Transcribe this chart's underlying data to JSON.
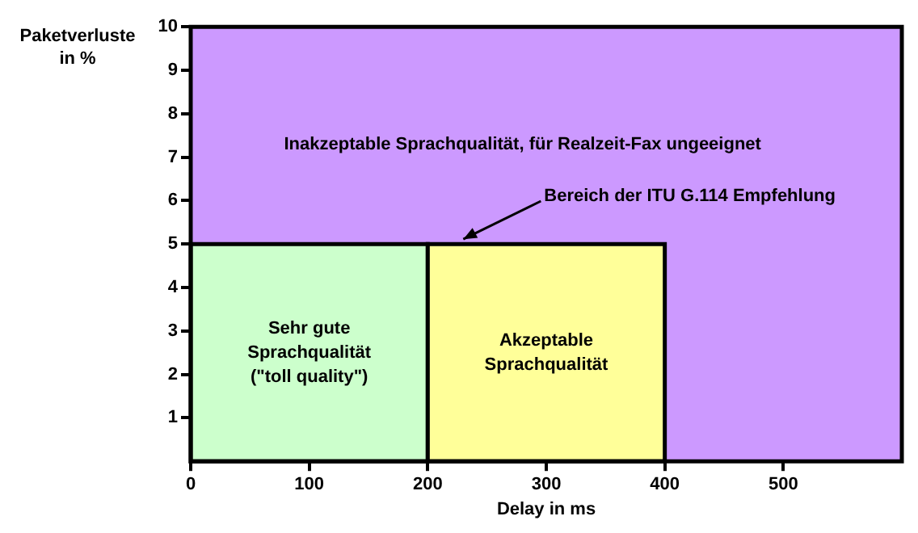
{
  "chart_data": {
    "type": "histogram",
    "xlabel": "Delay in ms",
    "ylabel": "Paketverluste in %",
    "bins": [
      0,
      200,
      400
    ],
    "values": [
      5,
      5
    ],
    "colors": [
      "#ccffcc",
      "#ffff99"
    ],
    "value_labels": [
      "Sehr gute\nSprachqualität\n(\"toll quality\")",
      "Akzeptable\nSprachqualität"
    ],
    "bands": [
      {
        "axis": "y",
        "from": 0,
        "to": 10,
        "label": "Inakzeptable Sprachqualität, für Realzeit-Fax ungeeignet",
        "color": "#cc99ff"
      }
    ],
    "annotations": [
      {
        "text": "Bereich der ITU G.114 Empfehlung",
        "x": 230,
        "y": 5
      }
    ],
    "xlim": [
      0,
      600
    ],
    "xticks": [
      0,
      100,
      200,
      300,
      400,
      500
    ],
    "ylim": [
      0,
      10
    ],
    "yticks": [
      1,
      2,
      3,
      4,
      5,
      6,
      7,
      8,
      9,
      10
    ],
    "legend": false
  }
}
